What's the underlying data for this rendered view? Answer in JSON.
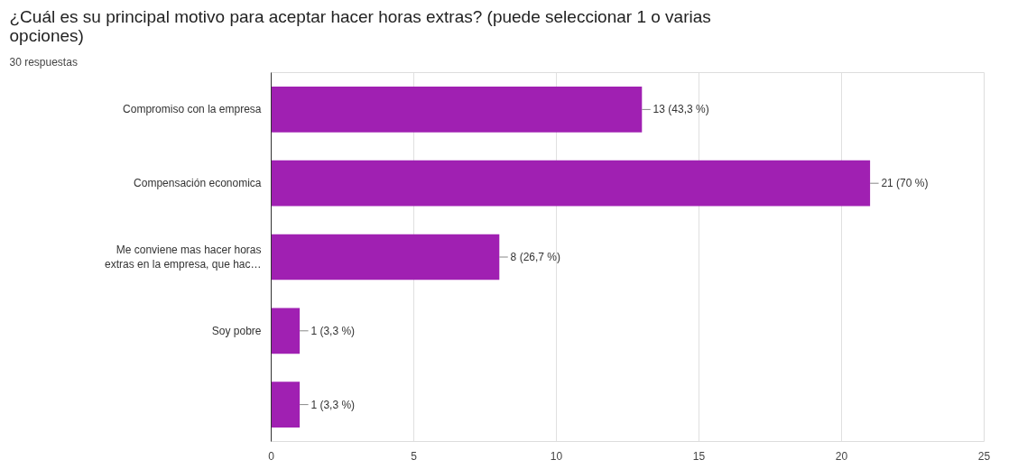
{
  "chart_data": {
    "type": "bar",
    "orientation": "horizontal",
    "title": "¿Cuál es su principal motivo para aceptar hacer horas extras?  (puede seleccionar 1 o varias opciones)",
    "subtitle": "30 respuestas",
    "categories": [
      "Compromiso con la empresa",
      "Compensación economica",
      "Me conviene mas hacer horas\nextras en la empresa, que hac…",
      "Soy pobre",
      null
    ],
    "values": [
      13,
      21,
      8,
      1,
      1
    ],
    "value_labels": [
      "13 (43,3 %)",
      "21 (70 %)",
      "8 (26,7 %)",
      "1 (3,3 %)",
      "1 (3,3 %)"
    ],
    "color": "#a020b2",
    "xlim": [
      0,
      25
    ],
    "xticks": [
      0,
      5,
      10,
      15,
      20,
      25
    ],
    "grid": "x"
  }
}
